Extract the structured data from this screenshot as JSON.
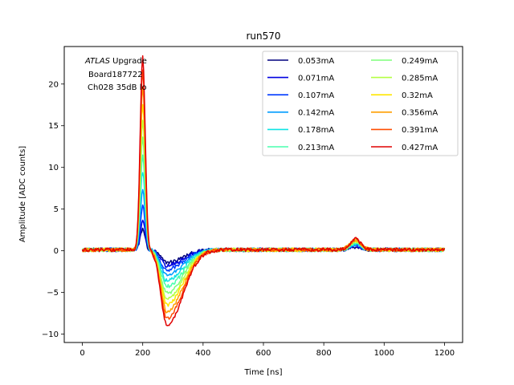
{
  "chart_data": {
    "type": "line",
    "title": "run570",
    "xlabel": "Time [ns]",
    "ylabel": "Amplitude [ADC counts]",
    "xlim": [
      -60,
      1260
    ],
    "ylim": [
      -11,
      24.5
    ],
    "xticks": [
      0,
      200,
      400,
      600,
      800,
      1000,
      1200
    ],
    "yticks": [
      -10,
      -5,
      0,
      5,
      10,
      15,
      20
    ],
    "xtick_labels": [
      "0",
      "200",
      "400",
      "600",
      "800",
      "1000",
      "1200"
    ],
    "ytick_labels": [
      "−10",
      "−5",
      "0",
      "5",
      "10",
      "15",
      "20"
    ],
    "grid": false,
    "legend_position": "top-right",
    "legend_columns": 2,
    "annotation": {
      "line1_italic": "ATLAS",
      "line1_rest": " Upgrade",
      "line2": "Board187722",
      "line3": "Ch028 35dB lo"
    },
    "series": [
      {
        "name": "0.053mA",
        "color": "#00007f",
        "peak": 2.5,
        "undershoot": -1.5,
        "bump": 0.35
      },
      {
        "name": "0.071mA",
        "color": "#0000e0",
        "peak": 3.4,
        "undershoot": -1.9,
        "bump": 0.45
      },
      {
        "name": "0.107mA",
        "color": "#003bff",
        "peak": 5.2,
        "undershoot": -2.4,
        "bump": 0.55
      },
      {
        "name": "0.142mA",
        "color": "#009cff",
        "peak": 7.2,
        "undershoot": -3.0,
        "bump": 0.65
      },
      {
        "name": "0.178mA",
        "color": "#0ee4e4",
        "peak": 9.3,
        "undershoot": -3.7,
        "bump": 0.75
      },
      {
        "name": "0.213mA",
        "color": "#49ffad",
        "peak": 11.3,
        "undershoot": -4.4,
        "bump": 0.85
      },
      {
        "name": "0.249mA",
        "color": "#7dff7a",
        "peak": 13.4,
        "undershoot": -5.2,
        "bump": 0.95
      },
      {
        "name": "0.285mA",
        "color": "#b4ff43",
        "peak": 15.5,
        "undershoot": -5.9,
        "bump": 1.05
      },
      {
        "name": "0.32mA",
        "color": "#ffe600",
        "peak": 17.5,
        "undershoot": -6.6,
        "bump": 1.1
      },
      {
        "name": "0.356mA",
        "color": "#ff9e00",
        "peak": 19.5,
        "undershoot": -7.4,
        "bump": 1.2
      },
      {
        "name": "0.391mA",
        "color": "#ff4d00",
        "peak": 21.5,
        "undershoot": -8.2,
        "bump": 1.25
      },
      {
        "name": "0.427mA",
        "color": "#e00000",
        "peak": 23.2,
        "undershoot": -9.0,
        "bump": 1.3
      }
    ]
  }
}
